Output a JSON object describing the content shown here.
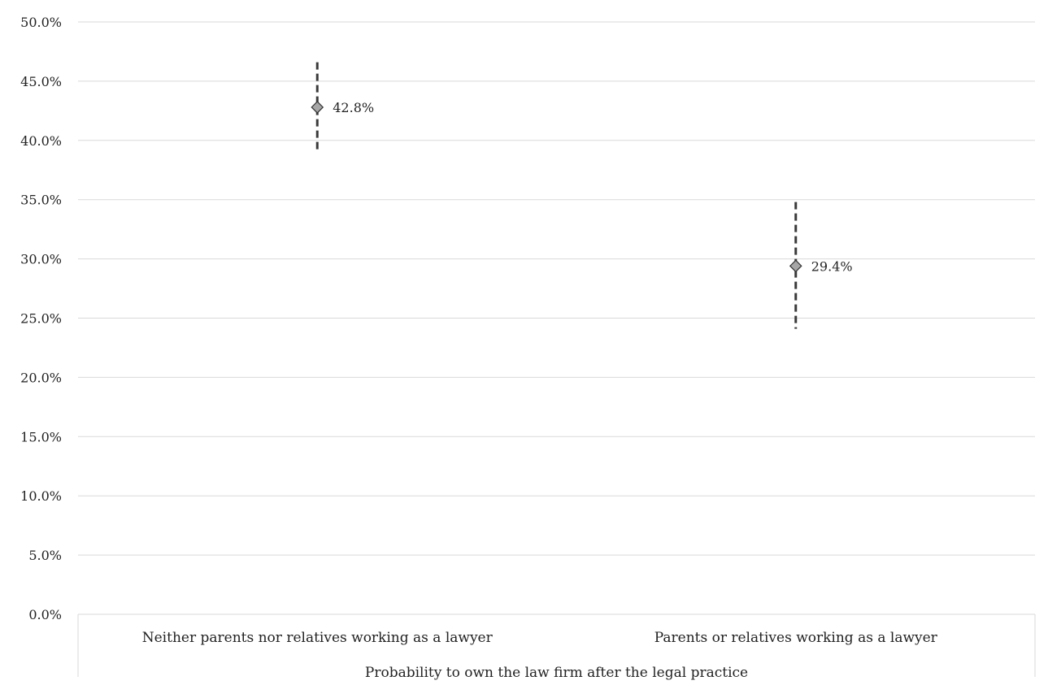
{
  "chart_data": {
    "type": "scatter",
    "categories": [
      "Neither parents nor relatives working as a lawyer",
      "Parents or relatives working as a lawyer"
    ],
    "values": [
      42.8,
      29.4
    ],
    "value_labels": [
      "42.8%",
      "29.4%"
    ],
    "error_bars": [
      {
        "low": 39.1,
        "high": 46.6
      },
      {
        "low": 24.1,
        "high": 34.8
      }
    ],
    "xlabel": "Probability to own the law firm after the legal practice",
    "ylabel": "",
    "ylim": [
      0,
      50
    ],
    "yticks": [
      0,
      5,
      10,
      15,
      20,
      25,
      30,
      35,
      40,
      45,
      50
    ],
    "ytick_labels": [
      "0.0%",
      "5.0%",
      "10.0%",
      "15.0%",
      "20.0%",
      "25.0%",
      "30.0%",
      "35.0%",
      "40.0%",
      "45.0%",
      "50.0%"
    ],
    "grid": true,
    "legend": "none",
    "marker": "diamond",
    "marker_color": "#a6a6a6",
    "error_bar_style": "dashed",
    "error_bar_color": "#3a3a3a",
    "grid_color": "#d9d9d9"
  }
}
